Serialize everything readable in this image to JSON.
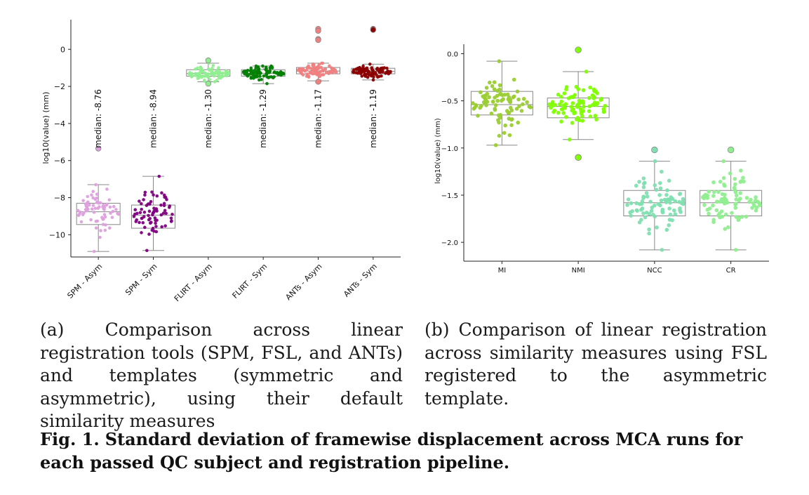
{
  "chart_data": [
    {
      "type": "box-swarm",
      "ylabel": "log10(value) (mm)",
      "ylim": [
        -11.2,
        1.6
      ],
      "yticks": [
        0,
        -2,
        -4,
        -6,
        -8,
        -10
      ],
      "grid": false,
      "categories": [
        "SPM - Asym",
        "SPM - Sym",
        "FLIRT - Asym",
        "FLIRT - Sym",
        "ANTs - Asym",
        "ANTs - Sym"
      ],
      "colors": [
        "#dda0dd",
        "#800080",
        "#90ee90",
        "#008000",
        "#f08080",
        "#8b0000"
      ],
      "series": [
        {
          "category": "SPM - Asym",
          "median": -8.76,
          "q1": -9.45,
          "q3": -8.3,
          "whisker_low": -10.9,
          "whisker_high": -7.3,
          "outliers": [
            -5.35
          ],
          "n": 70
        },
        {
          "category": "SPM - Sym",
          "median": -8.94,
          "q1": -9.65,
          "q3": -8.4,
          "whisker_low": -10.85,
          "whisker_high": -6.85,
          "outliers": [],
          "n": 75
        },
        {
          "category": "FLIRT - Asym",
          "median": -1.3,
          "q1": -1.45,
          "q3": -1.1,
          "whisker_low": -1.75,
          "whisker_high": -0.75,
          "outliers": [
            -0.6,
            -1.85
          ],
          "n": 80
        },
        {
          "category": "FLIRT - Sym",
          "median": -1.29,
          "q1": -1.45,
          "q3": -1.1,
          "whisker_low": -1.85,
          "whisker_high": -0.9,
          "outliers": [],
          "n": 90
        },
        {
          "category": "ANTs - Asym",
          "median": -1.17,
          "q1": -1.32,
          "q3": -0.98,
          "whisker_low": -1.7,
          "whisker_high": -0.75,
          "outliers": [
            1.1,
            1.0,
            0.55,
            0.5,
            -1.75
          ],
          "n": 85
        },
        {
          "category": "ANTs - Sym",
          "median": -1.19,
          "q1": -1.32,
          "q3": -1.02,
          "whisker_low": -1.65,
          "whisker_high": -0.8,
          "outliers": [
            1.1,
            1.05
          ],
          "n": 85
        }
      ],
      "annotations": [
        "median: -8.76",
        "median: -8.94",
        "median: -1.30",
        "median: -1.29",
        "median: -1.17",
        "median: -1.19"
      ]
    },
    {
      "type": "box-swarm",
      "ylabel": "log10(value) (mm)",
      "ylim": [
        -2.2,
        0.1
      ],
      "yticks": [
        0.0,
        -0.5,
        -1.0,
        -1.5,
        -2.0
      ],
      "ytick_labels": [
        "0.0",
        "−0.5",
        "−1.0",
        "−1.5",
        "−2.0"
      ],
      "grid": false,
      "categories": [
        "MI",
        "NMI",
        "NCC",
        "CR"
      ],
      "colors": [
        "#9acd32",
        "#7fff00",
        "#7fdfb0",
        "#90ee90"
      ],
      "series": [
        {
          "category": "MI",
          "median": -0.54,
          "q1": -0.65,
          "q3": -0.4,
          "whisker_low": -0.97,
          "whisker_high": -0.08,
          "outliers": [],
          "n": 85
        },
        {
          "category": "NMI",
          "median": -0.56,
          "q1": -0.68,
          "q3": -0.47,
          "whisker_low": -0.91,
          "whisker_high": -0.19,
          "outliers": [
            0.04,
            -1.1,
            -1.1
          ],
          "n": 85
        },
        {
          "category": "NCC",
          "median": -1.58,
          "q1": -1.72,
          "q3": -1.45,
          "whisker_low": -2.08,
          "whisker_high": -1.14,
          "outliers": [
            -1.02
          ],
          "n": 85
        },
        {
          "category": "CR",
          "median": -1.58,
          "q1": -1.72,
          "q3": -1.45,
          "whisker_low": -2.08,
          "whisker_high": -1.14,
          "outliers": [
            -1.02
          ],
          "n": 85
        }
      ]
    }
  ],
  "captions": {
    "a": "(a) Comparison across linear registration tools (SPM, FSL, and ANTs) and templates (symmetric and asymmetric), using their default similarity measures",
    "b": "(b) Comparison of linear registration across similarity measures using FSL registered to the asymmetric template.",
    "figure_label": "Fig. 1.",
    "figure_text": "Standard deviation of framewise displacement across MCA runs for each passed QC subject and registration pipeline."
  }
}
